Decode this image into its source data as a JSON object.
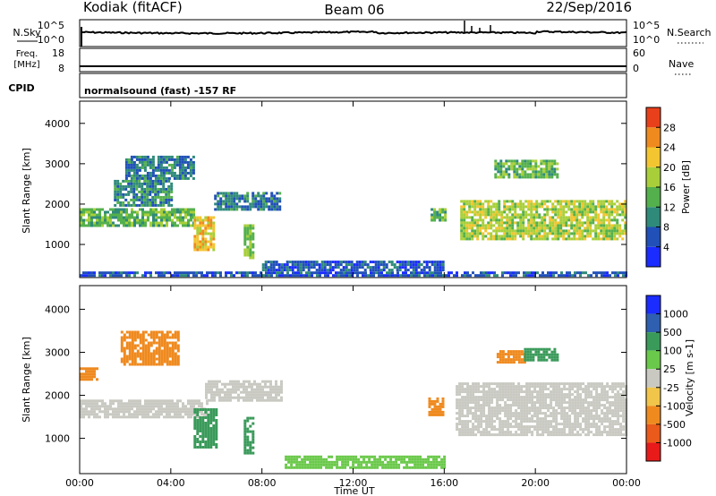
{
  "header": {
    "left_title": "Kodiak (fitACF)",
    "center_title": "Beam 06",
    "right_title": "22/Sep/2016"
  },
  "noise_panel": {
    "left_label": "N.Sky",
    "right_label": "N.Search",
    "left_ticks": [
      "10^5",
      "10^0"
    ],
    "right_ticks": [
      "10^5",
      "10^0"
    ]
  },
  "freq_panel": {
    "left_label_1": "Freq.",
    "left_label_2": "[MHz]",
    "right_label": "Nave",
    "left_ticks": [
      "18",
      "8"
    ],
    "right_ticks": [
      "60",
      "0"
    ]
  },
  "cpid_panel": {
    "label": "CPID",
    "text": "normalsound (fast) -157 RF"
  },
  "chart_data": [
    {
      "type": "heatmap",
      "panel": "power",
      "ylabel": "Slant Range [km]",
      "xlabel": "",
      "yticks": [
        1000,
        2000,
        3000,
        4000
      ],
      "ylim": [
        180,
        4550
      ],
      "xlim": [
        0,
        24
      ],
      "colorbar": {
        "label": "Power [dB]",
        "ticks": [
          4,
          8,
          12,
          16,
          20,
          24,
          28
        ],
        "range": [
          0,
          32
        ],
        "colors": [
          "#1a2cff",
          "#2050b8",
          "#2f8a7a",
          "#54b04c",
          "#a8cf3a",
          "#f3c530",
          "#ef8a1f",
          "#e8401a"
        ]
      },
      "regions": [
        {
          "t0": 0.0,
          "t1": 5.0,
          "r0": 1480,
          "r1": 1900,
          "value": 14
        },
        {
          "t0": 1.5,
          "t1": 4.0,
          "r0": 2000,
          "r1": 2600,
          "value": 10
        },
        {
          "t0": 2.0,
          "t1": 5.0,
          "r0": 2650,
          "r1": 3200,
          "value": 9
        },
        {
          "t0": 5.0,
          "t1": 5.9,
          "r0": 850,
          "r1": 1700,
          "value": 22
        },
        {
          "t0": 5.9,
          "t1": 8.8,
          "r0": 1900,
          "r1": 2300,
          "value": 9
        },
        {
          "t0": 7.2,
          "t1": 7.6,
          "r0": 700,
          "r1": 1500,
          "value": 16
        },
        {
          "t0": 8.0,
          "t1": 16.0,
          "r0": 350,
          "r1": 600,
          "value": 6
        },
        {
          "t0": 15.4,
          "t1": 16.0,
          "r0": 1600,
          "r1": 1900,
          "value": 14
        },
        {
          "t0": 16.7,
          "t1": 24.0,
          "r0": 1150,
          "r1": 2100,
          "value": 18
        },
        {
          "t0": 18.2,
          "t1": 21.0,
          "r0": 2700,
          "r1": 3100,
          "value": 14
        },
        {
          "t0": 0.0,
          "t1": 24.0,
          "r0": 200,
          "r1": 330,
          "value": 6
        }
      ]
    },
    {
      "type": "heatmap",
      "panel": "velocity",
      "ylabel": "Slant Range [km]",
      "xlabel": "Time UT",
      "xticks": [
        "00:00",
        "04:00",
        "08:00",
        "12:00",
        "16:00",
        "20:00",
        "00:00"
      ],
      "yticks": [
        1000,
        2000,
        3000,
        4000
      ],
      "ylim": [
        180,
        4550
      ],
      "xlim": [
        0,
        24
      ],
      "colorbar": {
        "label": "Velocity [m s-1]",
        "ticks": [
          "1000",
          "500",
          "100",
          "25",
          "-25",
          "-100",
          "-500",
          "-1000"
        ],
        "colors": [
          "#1a2cff",
          "#2f5fb0",
          "#3a9a5a",
          "#6ac94a",
          "#c9c9c2",
          "#f1c54a",
          "#ef8a1f",
          "#ea5a1a",
          "#e81a1a"
        ]
      },
      "regions": [
        {
          "t0": 0.0,
          "t1": 5.6,
          "r0": 1500,
          "r1": 1900,
          "value": 0
        },
        {
          "t0": 5.5,
          "t1": 8.8,
          "r0": 1900,
          "r1": 2350,
          "value": 0
        },
        {
          "t0": 0.0,
          "t1": 0.8,
          "r0": 2350,
          "r1": 2650,
          "value": -200
        },
        {
          "t0": 1.8,
          "t1": 4.3,
          "r0": 2700,
          "r1": 3500,
          "value": -200
        },
        {
          "t0": 5.0,
          "t1": 6.0,
          "r0": 800,
          "r1": 1700,
          "value": 150
        },
        {
          "t0": 7.2,
          "t1": 7.6,
          "r0": 650,
          "r1": 1500,
          "value": 300
        },
        {
          "t0": 9.0,
          "t1": 16.0,
          "r0": 300,
          "r1": 600,
          "value": 60
        },
        {
          "t0": 15.3,
          "t1": 16.0,
          "r0": 1550,
          "r1": 1950,
          "value": -200
        },
        {
          "t0": 16.5,
          "t1": 24.0,
          "r0": 1100,
          "r1": 2300,
          "value": 0
        },
        {
          "t0": 18.3,
          "t1": 19.5,
          "r0": 2750,
          "r1": 3050,
          "value": -150
        },
        {
          "t0": 19.5,
          "t1": 21.0,
          "r0": 2800,
          "r1": 3100,
          "value": 150
        }
      ]
    }
  ]
}
